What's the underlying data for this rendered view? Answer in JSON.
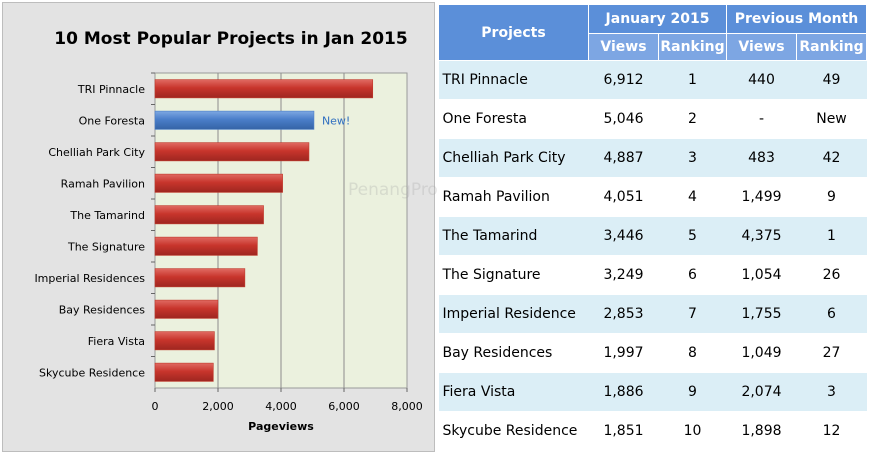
{
  "watermark": "PenangPropertyTalk.com",
  "chart_data": {
    "type": "bar",
    "orientation": "horizontal",
    "title": "10 Most Popular Projects in Jan 2015",
    "xlabel": "Pageviews",
    "ylabel": "",
    "xlim": [
      0,
      8000
    ],
    "ticks": [
      0,
      2000,
      4000,
      6000,
      8000
    ],
    "tick_labels": [
      "0",
      "2,000",
      "4,000",
      "6,000",
      "8,000"
    ],
    "grid": true,
    "categories": [
      "TRI Pinnacle",
      "One Foresta",
      "Chelliah Park City",
      "Ramah Pavilion",
      "The Tamarind",
      "The Signature",
      "Imperial Residences",
      "Bay Residences",
      "Fiera Vista",
      "Skycube Residence"
    ],
    "values": [
      6912,
      5046,
      4887,
      4051,
      3446,
      3249,
      2853,
      1997,
      1886,
      1851
    ],
    "bar_colors": [
      "#c0392b",
      "#4a7ec9",
      "#c0392b",
      "#c0392b",
      "#c0392b",
      "#c0392b",
      "#c0392b",
      "#c0392b",
      "#c0392b",
      "#c0392b"
    ],
    "annotations": [
      {
        "category": "One Foresta",
        "text": "New!"
      }
    ]
  },
  "table": {
    "header": {
      "projects": "Projects",
      "group1": "January 2015",
      "group2": "Previous Month",
      "views": "Views",
      "ranking": "Ranking"
    },
    "rows": [
      {
        "name": "TRI Pinnacle",
        "jan_views": "6,912",
        "jan_rank": "1",
        "prev_views": "440",
        "prev_rank": "49"
      },
      {
        "name": "One Foresta",
        "jan_views": "5,046",
        "jan_rank": "2",
        "prev_views": "-",
        "prev_rank": "New"
      },
      {
        "name": "Chelliah Park City",
        "jan_views": "4,887",
        "jan_rank": "3",
        "prev_views": "483",
        "prev_rank": "42"
      },
      {
        "name": "Ramah Pavilion",
        "jan_views": "4,051",
        "jan_rank": "4",
        "prev_views": "1,499",
        "prev_rank": "9"
      },
      {
        "name": "The Tamarind",
        "jan_views": "3,446",
        "jan_rank": "5",
        "prev_views": "4,375",
        "prev_rank": "1"
      },
      {
        "name": "The Signature",
        "jan_views": "3,249",
        "jan_rank": "6",
        "prev_views": "1,054",
        "prev_rank": "26"
      },
      {
        "name": "Imperial Residence",
        "jan_views": "2,853",
        "jan_rank": "7",
        "prev_views": "1,755",
        "prev_rank": "6"
      },
      {
        "name": "Bay Residences",
        "jan_views": "1,997",
        "jan_rank": "8",
        "prev_views": "1,049",
        "prev_rank": "27"
      },
      {
        "name": "Fiera Vista",
        "jan_views": "1,886",
        "jan_rank": "9",
        "prev_views": "2,074",
        "prev_rank": "3"
      },
      {
        "name": "Skycube Residence",
        "jan_views": "1,851",
        "jan_rank": "10",
        "prev_views": "1,898",
        "prev_rank": "12"
      }
    ]
  }
}
